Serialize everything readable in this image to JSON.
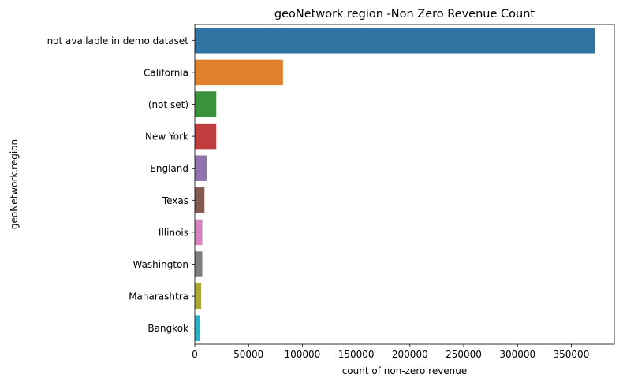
{
  "chart_data": {
    "type": "bar",
    "orientation": "horizontal",
    "title": "geoNetwork region -Non Zero Revenue Count",
    "xlabel": "count of non-zero revenue",
    "ylabel": "geoNetwork.region",
    "categories": [
      "not available in demo dataset",
      "California",
      "(not set)",
      "New York",
      "England",
      "Texas",
      "Illinois",
      "Washington",
      "Maharashtra",
      "Bangkok"
    ],
    "values": [
      372000,
      82000,
      20000,
      20000,
      11000,
      9000,
      7000,
      7000,
      6000,
      5000
    ],
    "colors": [
      "#3274a1",
      "#e1812c",
      "#3a923a",
      "#c03d3e",
      "#9372b2",
      "#845b53",
      "#d684bd",
      "#7f7f7f",
      "#a9aa35",
      "#2eb0c4"
    ],
    "xlim": [
      0,
      390000
    ],
    "xticks": [
      0,
      50000,
      100000,
      150000,
      200000,
      250000,
      300000,
      350000
    ],
    "grid": false,
    "legend": "none"
  }
}
